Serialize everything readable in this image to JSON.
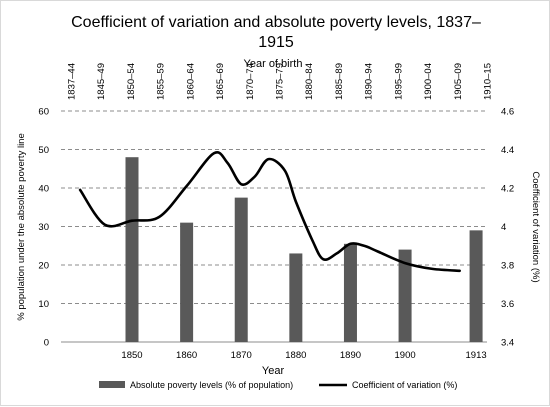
{
  "chart_data": {
    "type": "bar",
    "title_line1": "Coefficient of variation and absolute poverty levels, 1837–",
    "title_line2": "1915",
    "top_axis_title": "Year of birth",
    "top_categories": [
      "1837–44",
      "1845–49",
      "1850–54",
      "1855–59",
      "1860–64",
      "1865–69",
      "1870–74",
      "1875–79",
      "1880–84",
      "1885–89",
      "1890–94",
      "1895–99",
      "1900–04",
      "1905–09",
      "1910–15"
    ],
    "x_title": "Year",
    "x_tick_labels": [
      "1850",
      "1860",
      "1870",
      "1880",
      "1890",
      "1900",
      "1913"
    ],
    "ylabel_left": "% population under the absolute poverty line",
    "ylabel_right": "Coefficient of variation (%)",
    "ylim_left": [
      0,
      60
    ],
    "left_ticks": [
      "0",
      "10",
      "20",
      "30",
      "40",
      "50",
      "60"
    ],
    "ylim_right": [
      3.4,
      4.6
    ],
    "right_ticks": [
      "3.4",
      "3.6",
      "3.8",
      "4",
      "4.2",
      "4.4",
      "4.6"
    ],
    "grid": "horizontal dashed",
    "legend_position": "bottom",
    "series": [
      {
        "name": "Absolute poverty levels (% of population)",
        "kind": "bar",
        "axis": "left",
        "color": "#595959",
        "x": [
          "1850",
          "1860",
          "1870",
          "1880",
          "1890",
          "1900",
          "1913"
        ],
        "values": [
          48,
          31,
          37.5,
          23,
          25.5,
          24,
          29
        ]
      },
      {
        "name": "Coefficient of variation (%)",
        "kind": "line",
        "axis": "right",
        "color": "#000000",
        "x": [
          1840.5,
          1845,
          1850,
          1855,
          1860,
          1865,
          1867.5,
          1870,
          1872.5,
          1875,
          1878,
          1880,
          1883,
          1885,
          1887.5,
          1890,
          1892.5,
          1895,
          1900,
          1905,
          1910
        ],
        "values": [
          4.19,
          4.01,
          4.03,
          4.05,
          4.21,
          4.38,
          4.33,
          4.22,
          4.26,
          4.35,
          4.29,
          4.13,
          3.93,
          3.83,
          3.86,
          3.91,
          3.9,
          3.87,
          3.81,
          3.78,
          3.77
        ]
      }
    ]
  }
}
